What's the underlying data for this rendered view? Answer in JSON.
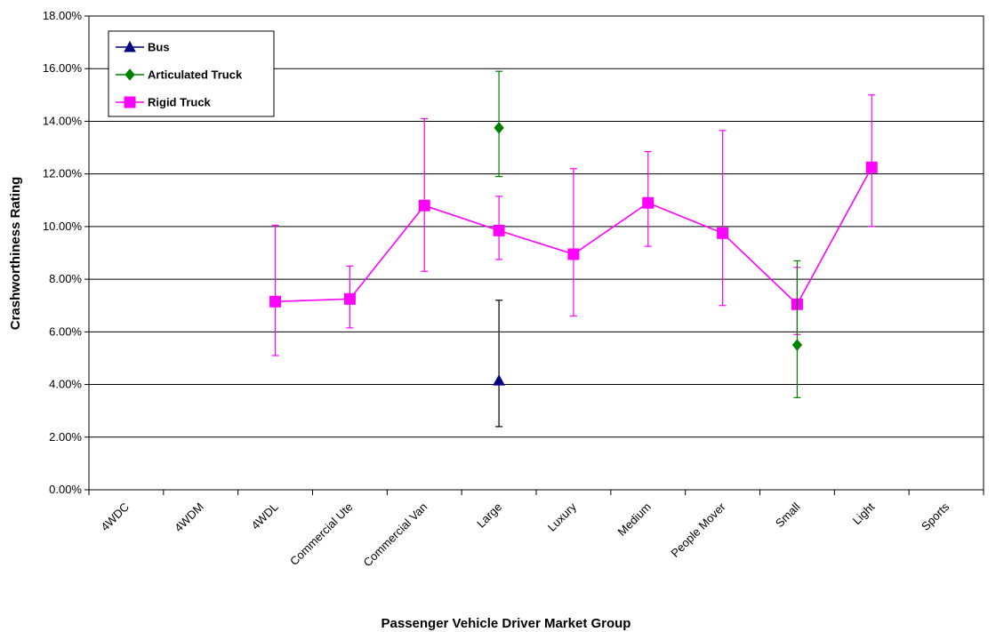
{
  "chart_data": {
    "type": "line",
    "title": "",
    "xlabel": "Passenger Vehicle Driver Market Group",
    "ylabel": "Crashworthiness Rating",
    "ylim": [
      0,
      0.18
    ],
    "y_ticks": [
      "0.00%",
      "2.00%",
      "4.00%",
      "6.00%",
      "8.00%",
      "10.00%",
      "12.00%",
      "14.00%",
      "16.00%",
      "18.00%"
    ],
    "y_tick_values": [
      0,
      0.02,
      0.04,
      0.06,
      0.08,
      0.1,
      0.12,
      0.14,
      0.16,
      0.18
    ],
    "categories": [
      "4WDC",
      "4WDM",
      "4WDL",
      "Commercial Ute",
      "Commercial Van",
      "Large",
      "Luxury",
      "Medium",
      "People Mover",
      "Small",
      "Light",
      "Sports"
    ],
    "grid": "horizontal",
    "legend_position": "top-left",
    "series": [
      {
        "name": "Bus",
        "color": "#000080",
        "errorbar_color": "#000000",
        "marker": "triangle",
        "values": [
          null,
          null,
          null,
          null,
          null,
          0.0415,
          null,
          null,
          null,
          null,
          null,
          null
        ],
        "lower": [
          null,
          null,
          null,
          null,
          null,
          0.024,
          null,
          null,
          null,
          null,
          null,
          null
        ],
        "upper": [
          null,
          null,
          null,
          null,
          null,
          0.072,
          null,
          null,
          null,
          null,
          null,
          null
        ]
      },
      {
        "name": "Articulated Truck",
        "color": "#008000",
        "errorbar_color": "#008000",
        "marker": "diamond",
        "values": [
          null,
          null,
          null,
          null,
          null,
          0.1375,
          null,
          null,
          null,
          0.055,
          null,
          null
        ],
        "lower": [
          null,
          null,
          null,
          null,
          null,
          0.119,
          null,
          null,
          null,
          0.035,
          null,
          null
        ],
        "upper": [
          null,
          null,
          null,
          null,
          null,
          0.159,
          null,
          null,
          null,
          0.087,
          null,
          null
        ]
      },
      {
        "name": "Rigid Truck",
        "color": "#ff00ff",
        "errorbar_color": "#ff00ff",
        "marker": "square",
        "values": [
          null,
          null,
          0.0715,
          0.0725,
          0.108,
          0.0985,
          0.0895,
          0.109,
          0.0975,
          0.0705,
          0.1225,
          null
        ],
        "lower": [
          null,
          null,
          0.051,
          0.0615,
          0.083,
          0.0875,
          0.066,
          0.0925,
          0.07,
          0.059,
          0.1,
          null
        ],
        "upper": [
          null,
          null,
          0.1005,
          0.085,
          0.141,
          0.1115,
          0.122,
          0.1285,
          0.1365,
          0.0845,
          0.15,
          null
        ]
      }
    ]
  }
}
